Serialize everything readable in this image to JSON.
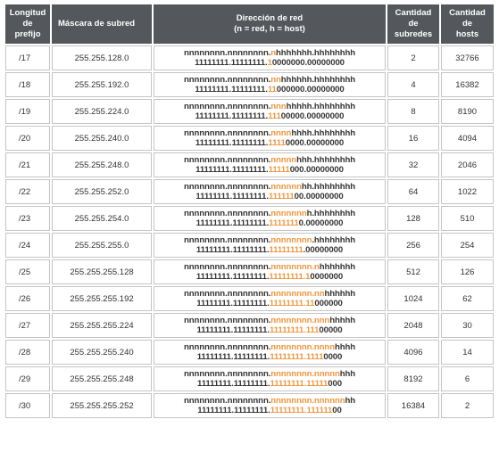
{
  "colors": {
    "header_bg": "#54585c",
    "highlight": "#f0963c",
    "text": "#333333",
    "border": "#c4c4c4"
  },
  "headers": {
    "prefix": [
      "Longitud",
      "de",
      "prefijo"
    ],
    "mask": "Máscara de subred",
    "address": [
      "Dirección de red",
      "(n = red, h = host)"
    ],
    "subnets": [
      "Cantidad",
      "de",
      "subredes"
    ],
    "hosts": [
      "Cantidad",
      "de",
      "hosts"
    ]
  },
  "rows": [
    {
      "prefix": "/17",
      "mask": "255.255.128.0",
      "line1": [
        "nnnnnnnn.nnnnnnnn.",
        "n",
        "hhhhhhh.hhhhhhhh"
      ],
      "line2": [
        "11111111.11111111.",
        "1",
        "0000000.00000000"
      ],
      "subnets": "2",
      "hosts": "32766"
    },
    {
      "prefix": "/18",
      "mask": "255.255.192.0",
      "line1": [
        "nnnnnnnn.nnnnnnnn.",
        "nn",
        "hhhhhh.hhhhhhhh"
      ],
      "line2": [
        "11111111.11111111.",
        "11",
        "000000.00000000"
      ],
      "subnets": "4",
      "hosts": "16382"
    },
    {
      "prefix": "/19",
      "mask": "255.255.224.0",
      "line1": [
        "nnnnnnnn.nnnnnnnn.",
        "nnn",
        "hhhhh.hhhhhhhh"
      ],
      "line2": [
        "11111111.11111111.",
        "111",
        "00000.00000000"
      ],
      "subnets": "8",
      "hosts": "8190"
    },
    {
      "prefix": "/20",
      "mask": "255.255.240.0",
      "line1": [
        "nnnnnnnn.nnnnnnnn.",
        "nnnn",
        "hhhh.hhhhhhhh"
      ],
      "line2": [
        "11111111.11111111.",
        "1111",
        "0000.00000000"
      ],
      "subnets": "16",
      "hosts": "4094"
    },
    {
      "prefix": "/21",
      "mask": "255.255.248.0",
      "line1": [
        "nnnnnnnn.nnnnnnnn.",
        "nnnnn",
        "hhh.hhhhhhhh"
      ],
      "line2": [
        "11111111.11111111.",
        "11111",
        "000.00000000"
      ],
      "subnets": "32",
      "hosts": "2046"
    },
    {
      "prefix": "/22",
      "mask": "255.255.252.0",
      "line1": [
        "nnnnnnnn.nnnnnnnn.",
        "nnnnnn",
        "hh.hhhhhhhh"
      ],
      "line2": [
        "11111111.11111111.",
        "111111",
        "00.00000000"
      ],
      "subnets": "64",
      "hosts": "1022"
    },
    {
      "prefix": "/23",
      "mask": "255.255.254.0",
      "line1": [
        "nnnnnnnn.nnnnnnnn.",
        "nnnnnnn",
        "h.hhhhhhhh"
      ],
      "line2": [
        "11111111.11111111.",
        "1111111",
        "0.00000000"
      ],
      "subnets": "128",
      "hosts": "510"
    },
    {
      "prefix": "/24",
      "mask": "255.255.255.0",
      "line1": [
        "nnnnnnnn.nnnnnnnn.",
        "nnnnnnnn",
        ".hhhhhhhh"
      ],
      "line2": [
        "11111111.11111111.",
        "11111111",
        ".00000000"
      ],
      "subnets": "256",
      "hosts": "254"
    },
    {
      "prefix": "/25",
      "mask": "255.255.255.128",
      "line1": [
        "nnnnnnnn.nnnnnnnn.",
        "nnnnnnnn.n",
        "hhhhhhh"
      ],
      "line2": [
        "11111111.11111111.",
        "11111111.1",
        "0000000"
      ],
      "subnets": "512",
      "hosts": "126"
    },
    {
      "prefix": "/26",
      "mask": "255.255.255.192",
      "line1": [
        "nnnnnnnn.nnnnnnnn.",
        "nnnnnnnn.nn",
        "hhhhhh"
      ],
      "line2": [
        "11111111.11111111.",
        "11111111.11",
        "000000"
      ],
      "subnets": "1024",
      "hosts": "62"
    },
    {
      "prefix": "/27",
      "mask": "255.255.255.224",
      "line1": [
        "nnnnnnnn.nnnnnnnn.",
        "nnnnnnnn.nnn",
        "hhhhh"
      ],
      "line2": [
        "11111111.11111111.",
        "11111111.111",
        "00000"
      ],
      "subnets": "2048",
      "hosts": "30"
    },
    {
      "prefix": "/28",
      "mask": "255.255.255.240",
      "line1": [
        "nnnnnnnn.nnnnnnnn.",
        "nnnnnnnn.nnnn",
        "hhhh"
      ],
      "line2": [
        "11111111.11111111.",
        "11111111.1111",
        "0000"
      ],
      "subnets": "4096",
      "hosts": "14"
    },
    {
      "prefix": "/29",
      "mask": "255.255.255.248",
      "line1": [
        "nnnnnnnn.nnnnnnnn.",
        "nnnnnnnn.nnnnn",
        "hhh"
      ],
      "line2": [
        "11111111.11111111.",
        "11111111.11111",
        "000"
      ],
      "subnets": "8192",
      "hosts": "6"
    },
    {
      "prefix": "/30",
      "mask": "255.255.255.252",
      "line1": [
        "nnnnnnnn.nnnnnnnn.",
        "nnnnnnnn.nnnnnn",
        "hh"
      ],
      "line2": [
        "11111111.11111111.",
        "11111111.111111",
        "00"
      ],
      "subnets": "16384",
      "hosts": "2"
    }
  ]
}
